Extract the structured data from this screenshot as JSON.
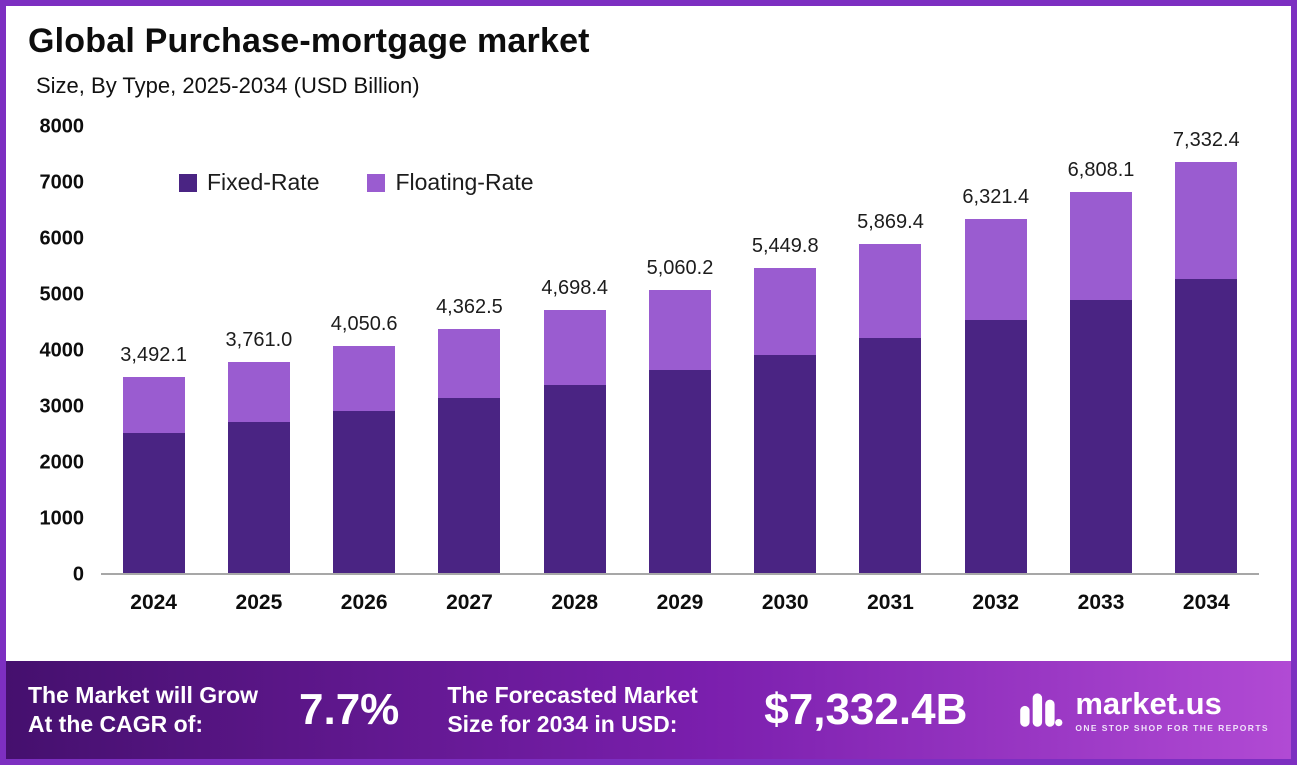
{
  "title": "Global Purchase-mortgage market",
  "subtitle": "Size, By Type, 2025-2034 (USD Billion)",
  "chart_data": {
    "type": "bar",
    "stacked": true,
    "title": "Global Purchase-mortgage market Size, By Type, 2025-2034 (USD Billion)",
    "xlabel": "",
    "ylabel": "",
    "ylim": [
      0,
      8000
    ],
    "yticks": [
      0,
      1000,
      2000,
      3000,
      4000,
      5000,
      6000,
      7000,
      8000
    ],
    "grid": false,
    "legend_position": "top-left",
    "categories": [
      "2024",
      "2025",
      "2026",
      "2027",
      "2028",
      "2029",
      "2030",
      "2031",
      "2032",
      "2033",
      "2034"
    ],
    "series": [
      {
        "name": "Fixed-Rate",
        "color": "#4a2483",
        "values": [
          2500.0,
          2690.0,
          2900.0,
          3120.0,
          3360.0,
          3620.0,
          3900.0,
          4200.0,
          4525.0,
          4875.0,
          5250.0
        ]
      },
      {
        "name": "Floating-Rate",
        "color": "#9a5cd0",
        "values": [
          992.1,
          1071.0,
          1150.6,
          1242.5,
          1338.4,
          1440.2,
          1549.8,
          1669.4,
          1796.4,
          1933.1,
          2082.4
        ]
      }
    ],
    "totals": [
      3492.1,
      3761.0,
      4050.6,
      4362.5,
      4698.4,
      5060.2,
      5449.8,
      5869.4,
      6321.4,
      6808.1,
      7332.4
    ],
    "totals_labels": [
      "3,492.1",
      "3,761.0",
      "4,050.6",
      "4,362.5",
      "4,698.4",
      "5,060.2",
      "5,449.8",
      "5,869.4",
      "6,321.4",
      "6,808.1",
      "7,332.4"
    ]
  },
  "footer": {
    "cagr_label": "The Market will Grow At the CAGR of:",
    "cagr_value": "7.7%",
    "forecast_label": "The Forecasted Market Size for 2034 in USD:",
    "forecast_value": "$7,332.4B",
    "brand": "market.us",
    "brand_tagline": "ONE STOP SHOP FOR THE REPORTS"
  }
}
